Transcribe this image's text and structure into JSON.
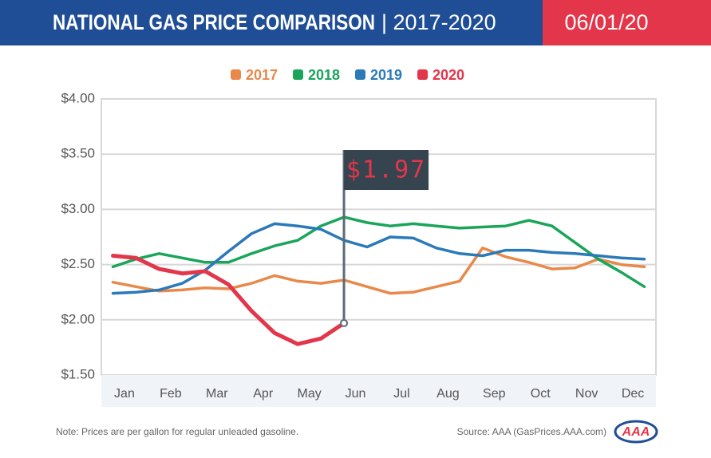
{
  "chart_data": {
    "type": "line",
    "title": "NATIONAL GAS PRICE COMPARISON",
    "subtitle": "| 2017-2020",
    "date": "06/01/20",
    "annotation": "$1.97",
    "note": "Note: Prices are per gallon for regular unleaded gasoline.",
    "source": "Source: AAA (GasPrices.AAA.com)",
    "logo": "AAA",
    "categories": [
      "Jan",
      null,
      "Feb",
      null,
      "Mar",
      null,
      "Apr",
      null,
      "May",
      null,
      "Jun",
      null,
      "Jul",
      null,
      "Aug",
      null,
      "Sep",
      null,
      "Oct",
      null,
      "Nov",
      null,
      "Dec",
      null
    ],
    "series": [
      {
        "name": "2017",
        "color": "#e8894a",
        "values": [
          2.34,
          2.3,
          2.26,
          2.27,
          2.29,
          2.28,
          2.33,
          2.4,
          2.35,
          2.33,
          2.36,
          2.3,
          2.24,
          2.25,
          2.3,
          2.35,
          2.65,
          2.57,
          2.52,
          2.46,
          2.47,
          2.55,
          2.5,
          2.48
        ]
      },
      {
        "name": "2018",
        "color": "#1aa55a",
        "values": [
          2.48,
          2.55,
          2.6,
          2.56,
          2.52,
          2.52,
          2.6,
          2.67,
          2.72,
          2.85,
          2.93,
          2.88,
          2.85,
          2.87,
          2.85,
          2.83,
          2.84,
          2.85,
          2.9,
          2.85,
          2.7,
          2.55,
          2.43,
          2.3
        ]
      },
      {
        "name": "2019",
        "color": "#2b7ab8",
        "values": [
          2.24,
          2.25,
          2.27,
          2.33,
          2.45,
          2.62,
          2.78,
          2.87,
          2.85,
          2.82,
          2.72,
          2.66,
          2.75,
          2.74,
          2.65,
          2.6,
          2.58,
          2.63,
          2.63,
          2.61,
          2.6,
          2.58,
          2.56,
          2.55
        ]
      },
      {
        "name": "2020",
        "color": "#e3364a",
        "values": [
          2.58,
          2.56,
          2.46,
          2.42,
          2.44,
          2.32,
          2.08,
          1.88,
          1.78,
          1.83,
          1.97,
          null,
          null,
          null,
          null,
          null,
          null,
          null,
          null,
          null,
          null,
          null,
          null,
          null
        ]
      }
    ],
    "ylim": [
      1.5,
      4.0
    ],
    "yticks": [
      {
        "value": 1.5,
        "label": "$1.50"
      },
      {
        "value": 2.0,
        "label": "$2.00"
      },
      {
        "value": 2.5,
        "label": "$2.50"
      },
      {
        "value": 3.0,
        "label": "$3.00"
      },
      {
        "value": 3.5,
        "label": "$3.50"
      },
      {
        "value": 4.0,
        "label": "$4.00"
      }
    ],
    "grid": true
  }
}
